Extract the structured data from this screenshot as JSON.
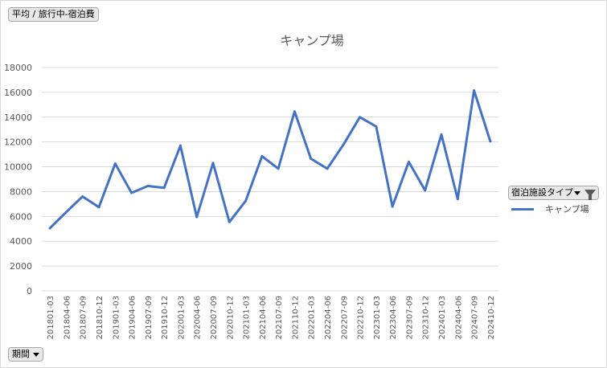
{
  "header": {
    "measure_label": "平均 / 旅行中-宿泊費"
  },
  "footer": {
    "period_label": "期間"
  },
  "legend": {
    "field_label": "宿泊施設タイプ",
    "series_label": "キャンプ場"
  },
  "colors": {
    "series": "#4472c4",
    "grid": "#d9d9d9",
    "axis_text": "#595959"
  },
  "chart_data": {
    "type": "line",
    "title": "キャンプ場",
    "xlabel": "",
    "ylabel": "",
    "ylim": [
      0,
      18000
    ],
    "yticks": [
      0,
      2000,
      4000,
      6000,
      8000,
      10000,
      12000,
      14000,
      16000,
      18000
    ],
    "grid": true,
    "legend_position": "right",
    "categories": [
      "201801-03",
      "201804-06",
      "201807-09",
      "201810-12",
      "201901-03",
      "201904-06",
      "201907-09",
      "201910-12",
      "202001-03",
      "202004-06",
      "202007-09",
      "202010-12",
      "202101-03",
      "202104-06",
      "202107-09",
      "202110-12",
      "202201-03",
      "202204-06",
      "202207-09",
      "202210-12",
      "202301-03",
      "202304-06",
      "202307-09",
      "202310-12",
      "202401-03",
      "202404-06",
      "202407-09",
      "202410-12"
    ],
    "series": [
      {
        "name": "キャンプ場",
        "values": [
          5050,
          6350,
          7600,
          6750,
          10250,
          7900,
          8450,
          8300,
          11700,
          5950,
          10300,
          5550,
          7250,
          10850,
          9850,
          14450,
          10650,
          9850,
          11800,
          14000,
          13250,
          6800,
          10400,
          8100,
          12600,
          7400,
          16150,
          12050
        ]
      }
    ]
  }
}
